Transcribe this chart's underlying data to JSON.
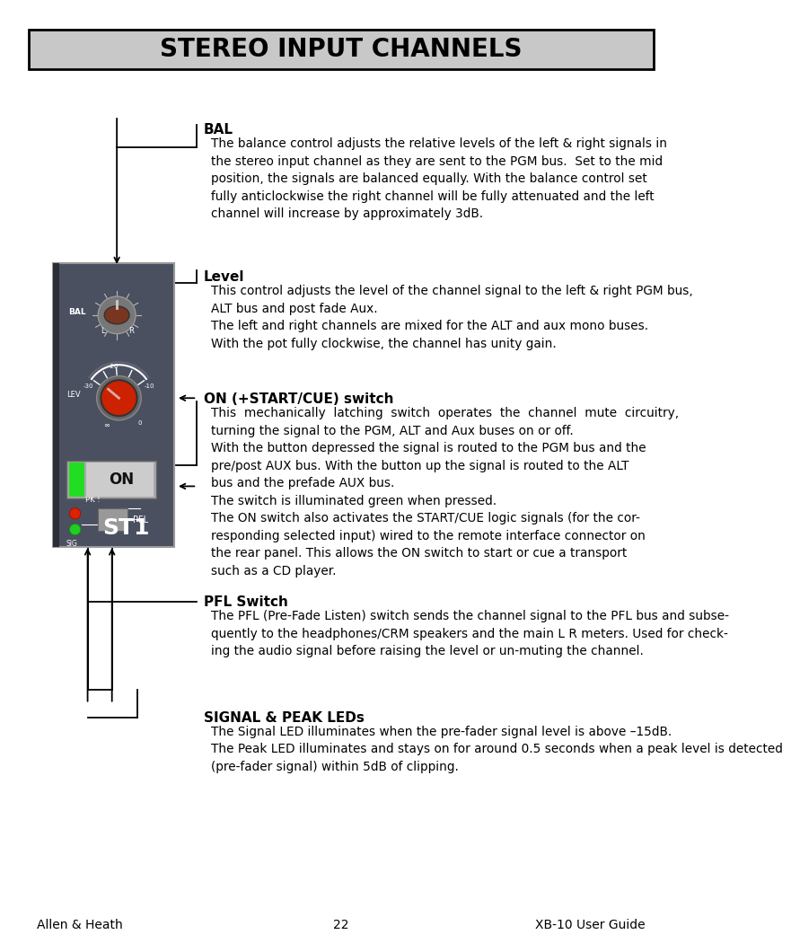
{
  "title": "STEREO INPUT CHANNELS",
  "title_bg": "#c8c8c8",
  "title_border": "#000000",
  "title_fontsize": 20,
  "page_bg": "#ffffff",
  "footer_left": "Allen & Heath",
  "footer_center": "22",
  "footer_right": "XB-10 User Guide",
  "footer_fontsize": 10,
  "section_BAL_title": "BAL",
  "section_BAL_body": "The balance control adjusts the relative levels of the left & right signals in\nthe stereo input channel as they are sent to the PGM bus.  Set to the mid\nposition, the signals are balanced equally. With the balance control set\nfully anticlockwise the right channel will be fully attenuated and the left\nchannel will increase by approximately 3dB.",
  "section_Level_title": "Level",
  "section_Level_body": "This control adjusts the level of the channel signal to the left & right PGM bus,\nALT bus and post fade Aux.\nThe left and right channels are mixed for the ALT and aux mono buses.\nWith the pot fully clockwise, the channel has unity gain.",
  "section_ON_title": "ON (+START/CUE) switch",
  "section_ON_body": "This  mechanically  latching  switch  operates  the  channel  mute  circuitry,\nturning the signal to the PGM, ALT and Aux buses on or off.\nWith the button depressed the signal is routed to the PGM bus and the\npre/post AUX bus. With the button up the signal is routed to the ALT\nbus and the prefade AUX bus.\nThe switch is illuminated green when pressed.\nThe ON switch also activates the START/CUE logic signals (for the cor-\nresponding selected input) wired to the remote interface connector on\nthe rear panel. This allows the ON switch to start or cue a transport\nsuch as a CD player.",
  "section_PFL_title": "PFL Switch",
  "section_PFL_body": "The PFL (Pre-Fade Listen) switch sends the channel signal to the PFL bus and subse-\nquently to the headphones/CRM speakers and the main L R meters. Used for check-\ning the audio signal before raising the level or un-muting the channel.",
  "section_SIG_title": "SIGNAL & PEAK LEDs",
  "section_SIG_body": "The Signal LED illuminates when the pre-fader signal level is above –15dB.\nThe Peak LED illuminates and stays on for around 0.5 seconds when a peak level is detected\n(pre-fader signal) within 5dB of clipping.",
  "panel_bg": "#4a5060",
  "panel_border": "#888888",
  "line_color": "#000000"
}
